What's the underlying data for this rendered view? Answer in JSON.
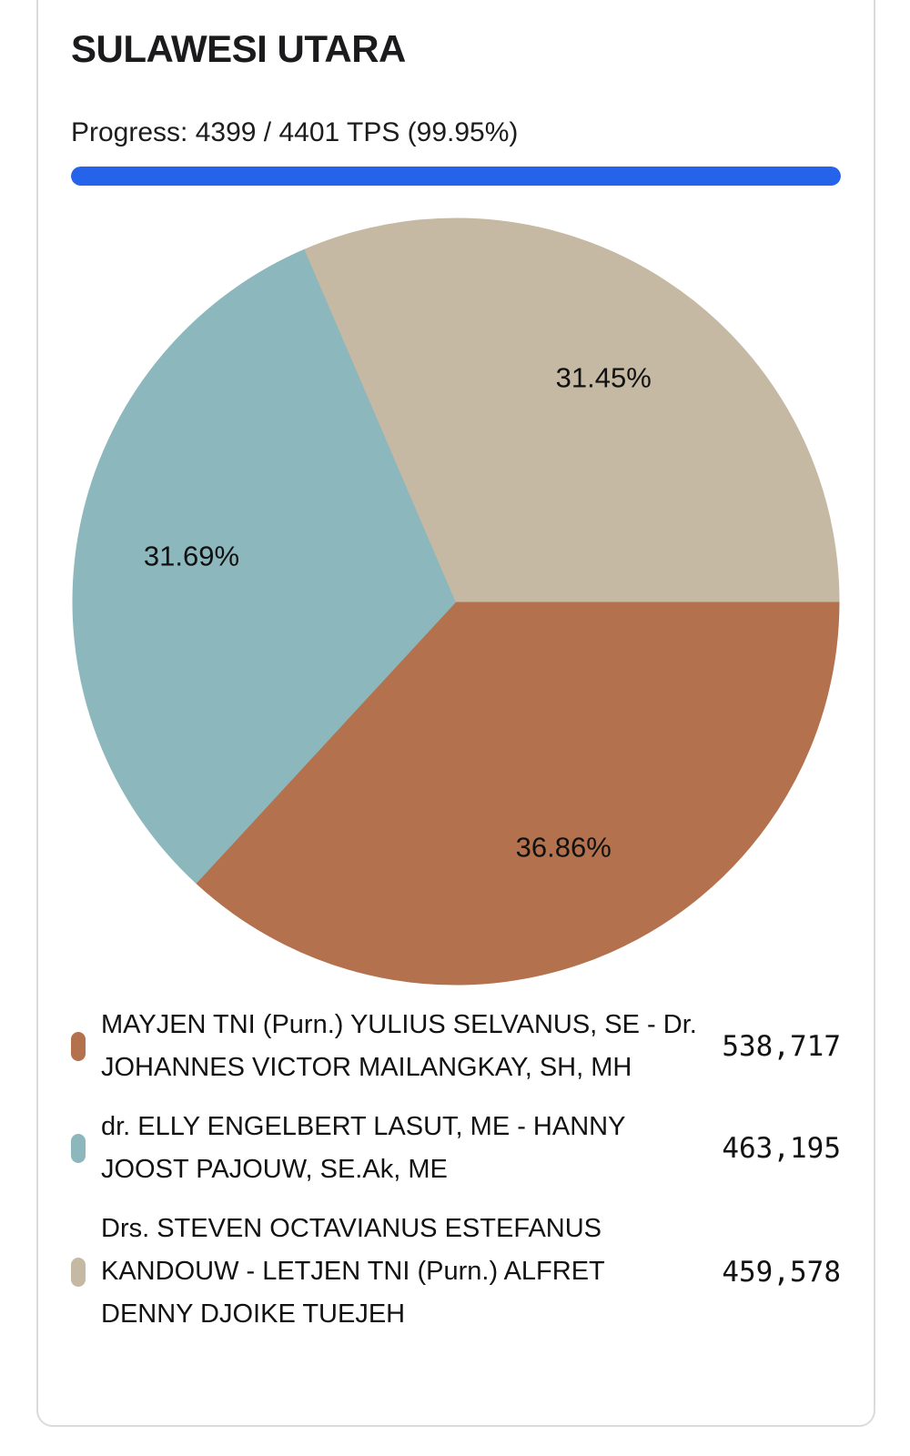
{
  "header": {
    "title": "SULAWESI UTARA"
  },
  "progress": {
    "text": "Progress: 4399 / 4401 TPS (99.95%)",
    "completed_tps": 4399,
    "total_tps": 4401,
    "percent": 99.95
  },
  "colors": {
    "progress_bar": "#2563eb",
    "card_border": "#dbdbdb",
    "slice_brown": "#b4714e",
    "slice_teal": "#8cb8bd",
    "slice_tan": "#c6b9a4"
  },
  "chart_data": {
    "type": "pie",
    "title": "",
    "legend_position": "bottom",
    "start_angle_deg": 0,
    "direction": "clockwise",
    "label_radius_ratio": 0.7,
    "series": [
      {
        "name": "MAYJEN TNI (Purn.) YULIUS SELVANUS, SE - Dr. JOHANNES VICTOR MAILANGKAY, SH, MH",
        "value": 538717,
        "display_value": "538,717",
        "percent": 36.86,
        "percent_label": "36.86%",
        "color": "#b4714e"
      },
      {
        "name": "dr. ELLY ENGELBERT LASUT, ME - HANNY JOOST PAJOUW, SE.Ak, ME",
        "value": 463195,
        "display_value": "463,195",
        "percent": 31.69,
        "percent_label": "31.69%",
        "color": "#8cb8bd"
      },
      {
        "name": "Drs. STEVEN OCTAVIANUS ESTEFANUS KANDOUW - LETJEN TNI (Purn.) ALFRET DENNY DJOIKE TUEJEH",
        "value": 459578,
        "display_value": "459,578",
        "percent": 31.45,
        "percent_label": "31.45%",
        "color": "#c6b9a4"
      }
    ]
  }
}
